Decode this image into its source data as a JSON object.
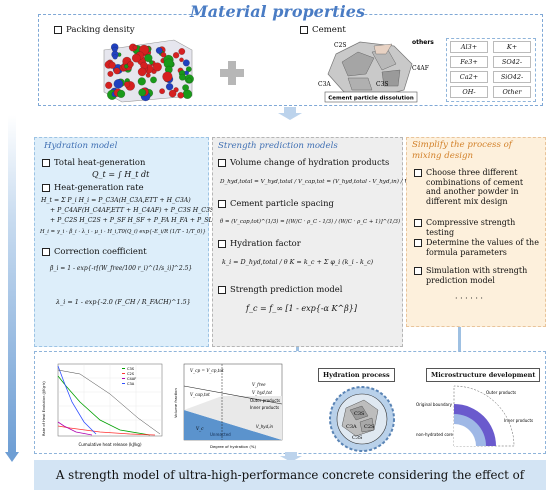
{
  "top": {
    "title": "Material properties",
    "packing_label": "Packing density",
    "cement_label": "Cement",
    "dissolution_caption": "Cement particle dissolution",
    "phase_labels": [
      "C2S",
      "others",
      "C4AF",
      "C3A",
      "C3S"
    ],
    "ions": [
      "Al3+",
      "K+",
      "Fe3+",
      "SO42-",
      "Ca2+",
      "SiO42-",
      "OH-",
      "Other"
    ]
  },
  "hydration": {
    "title": "Hydration model",
    "total_heat_label": "Total heat-generation",
    "total_heat_eq": "Q_t = ∫ H_t dt",
    "rate_label": "Heat-generation rate",
    "rate_eq": [
      "H_t = Σ P_i H_i = P_C3A(H_C3A,ETT + H_C3A)",
      "+ P_C4AF(H_C4AF,ETT + H_C4AF) + P_C3S H_C3S",
      "+ P_C2S H_C2S + P_SF H_SF + P_FA H_FA + P_SL H_SL",
      "H_i = γ_i · β_i · λ_i · μ_i · H_i,T0(Q_i) exp{-E_i/R (1/T - 1/T_0)}"
    ],
    "coeff_label": "Correction coefficient",
    "beta_eq": "β_i = 1 - exp{-r[(W_free/100 r_i)^(1/s_i)]^2.5}",
    "lambda_eq": "λ_i = 1 - exp{-2.0 (F_CH / R_FACH)^1.5}"
  },
  "strength": {
    "title": "Strength prediction models",
    "vol_label": "Volume change of hydration products",
    "vol_eq": "D_hyd,total = V_hyd,total / V_cap,tot = (V_hyd,total - V_hyd,in) / V_cap,tot",
    "spacing_label": "Cement particle spacing",
    "spacing_eq": "θ = (V_cap,tot)^(1/3) = [(W/C · ρ_C - 1/3) / (W/C · ρ_C + 1)]^(1/3)",
    "factor_label": "Hydration factor",
    "factor_eq": "k_i = D_hyd,total / θ      K = k_c + Σ φ_i (k_i - k_c)",
    "model_label": "Strength prediction model",
    "model_eq": "f_c = f_∞ [1 - exp{-α K^β}]"
  },
  "simplify": {
    "title": "Simplify the process of mixing design",
    "items": [
      "Choose three different combinations of cement and another powder in different mix design",
      "Compressive strength testing",
      "Determine the values of the formula parameters",
      "Simulation with strength prediction model"
    ],
    "ellipsis": "· · · · · ·"
  },
  "bottom": {
    "chart": {
      "ylabel": "Rate of Heat Evolution (J/Kg·h)",
      "xlabel": "Cumulative heat release (kJ/kg)",
      "legend": [
        "C3S",
        "C2S",
        "C4AF",
        "C3A"
      ],
      "colors": [
        "#00a000",
        "#ff3030",
        "#b000b0",
        "#3050ff"
      ]
    },
    "volume": {
      "ylabel": "Volume fraction",
      "xlabel": "Degree of hydration (%)",
      "labels": [
        "V_cp = V_cp,tot",
        "V_free",
        "V_hyd,tot",
        "V_cap,tot",
        "Outer products",
        "Inner products",
        "V_c",
        "Unreacted",
        "V_hyd,in"
      ]
    },
    "hydration_process": "Hydration process",
    "microstructure": "Microstructure development",
    "micro_labels": [
      "Original boundary",
      "Outer products",
      "Inner products",
      "non-hydrated core"
    ],
    "particle_labels": [
      "C3S",
      "C2S",
      "C3A",
      "C3S"
    ]
  },
  "footer": "A strength model of ultra-high-performance concrete considering the effect of hydration"
}
